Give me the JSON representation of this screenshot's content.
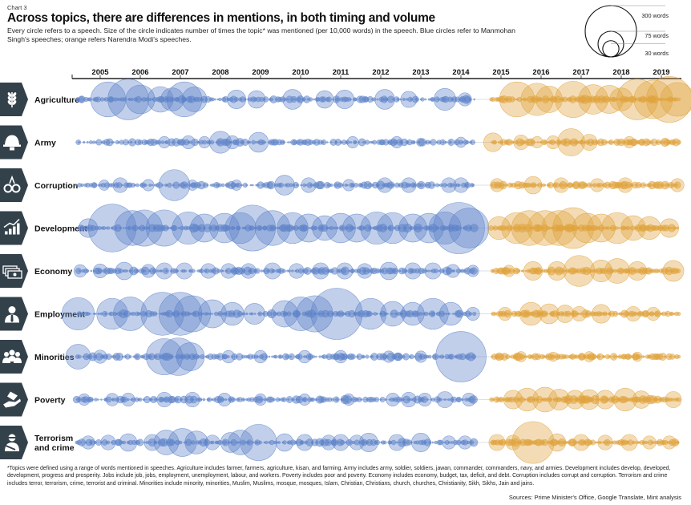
{
  "header": {
    "kicker": "Chart 3",
    "title": "Across topics, there are differences in mentions, in both timing and volume",
    "subtitle": "Every circle refers to a speech. Size of the circle indicates number of times the topic* was mentioned (per 10,000 words) in the speech. Blue circles refer to Manmohan Singh's speeches; orange refers Narendra Modi's speeches."
  },
  "legend": {
    "items": [
      {
        "label": "300 words",
        "value": 300
      },
      {
        "label": "75 words",
        "value": 75
      },
      {
        "label": "30 words",
        "value": 30
      }
    ]
  },
  "colors": {
    "manmohan": "#5b82c9",
    "modi": "#e0a33d",
    "icon_bg": "#33414b",
    "axis": "#222222"
  },
  "chart_data": {
    "type": "scatter",
    "encoding": "bubble timeline: x = speech date (year), y = topic row, bubble area = mentions per 10,000 words",
    "x_domain": [
      2004.3,
      2019.5
    ],
    "x_ticks": [
      2005,
      2006,
      2007,
      2008,
      2009,
      2010,
      2011,
      2012,
      2013,
      2014,
      2015,
      2016,
      2017,
      2018,
      2019
    ],
    "series": [
      {
        "name": "Manmohan Singh",
        "color": "#5b82c9",
        "years": [
          2004.4,
          2014.35
        ]
      },
      {
        "name": "Narendra Modi",
        "color": "#e0a33d",
        "years": [
          2014.75,
          2019.45
        ]
      }
    ],
    "topics": [
      {
        "name": "Agriculture",
        "icon": "wheat-icon",
        "big": [
          [
            2005.2,
            140
          ],
          [
            2005.7,
            190
          ],
          [
            2006.0,
            95
          ],
          [
            2006.5,
            75
          ],
          [
            2006.8,
            60
          ],
          [
            2007.1,
            140
          ],
          [
            2007.35,
            70
          ],
          [
            2008.4,
            40
          ],
          [
            2008.9,
            35
          ],
          [
            2009.8,
            45
          ],
          [
            2010.6,
            35
          ],
          [
            2011.1,
            40
          ],
          [
            2012.1,
            45
          ],
          [
            2012.7,
            30
          ],
          [
            2013.6,
            55
          ],
          [
            2014.1,
            20
          ],
          [
            2015.4,
            140
          ],
          [
            2015.9,
            120
          ],
          [
            2016.2,
            80
          ],
          [
            2016.8,
            150
          ],
          [
            2017.3,
            100
          ],
          [
            2017.7,
            90
          ],
          [
            2018.0,
            60
          ],
          [
            2018.4,
            190
          ],
          [
            2018.8,
            170
          ],
          [
            2019.2,
            240
          ],
          [
            2019.4,
            130
          ]
        ]
      },
      {
        "name": "Army",
        "icon": "helmet-icon",
        "big": [
          [
            2006.6,
            15
          ],
          [
            2007.2,
            20
          ],
          [
            2007.6,
            15
          ],
          [
            2008.0,
            55
          ],
          [
            2008.3,
            20
          ],
          [
            2008.95,
            45
          ],
          [
            2011.3,
            15
          ],
          [
            2012.4,
            15
          ],
          [
            2014.0,
            12
          ],
          [
            2014.8,
            40
          ],
          [
            2015.5,
            25
          ],
          [
            2015.9,
            15
          ],
          [
            2016.3,
            20
          ],
          [
            2016.75,
            85
          ],
          [
            2017.2,
            30
          ],
          [
            2018.2,
            15
          ]
        ]
      },
      {
        "name": "Corruption",
        "icon": "handcuffs-icon",
        "big": [
          [
            2005.1,
            12
          ],
          [
            2005.5,
            25
          ],
          [
            2006.2,
            15
          ],
          [
            2006.85,
            110
          ],
          [
            2007.3,
            12
          ],
          [
            2008.4,
            12
          ],
          [
            2009.6,
            45
          ],
          [
            2010.2,
            25
          ],
          [
            2011.2,
            15
          ],
          [
            2012.1,
            25
          ],
          [
            2012.7,
            25
          ],
          [
            2013.7,
            25
          ],
          [
            2014.0,
            25
          ],
          [
            2014.9,
            20
          ],
          [
            2015.8,
            35
          ],
          [
            2016.5,
            25
          ],
          [
            2017.4,
            20
          ],
          [
            2018.1,
            25
          ],
          [
            2019.4,
            20
          ]
        ]
      },
      {
        "name": "Development",
        "icon": "chart-growth-icon",
        "big": [
          [
            2004.7,
            40
          ],
          [
            2005.3,
            260
          ],
          [
            2005.8,
            140
          ],
          [
            2006.1,
            150
          ],
          [
            2006.6,
            150
          ],
          [
            2007.2,
            120
          ],
          [
            2007.6,
            90
          ],
          [
            2008.1,
            100
          ],
          [
            2008.5,
            110
          ],
          [
            2008.8,
            240
          ],
          [
            2009.3,
            140
          ],
          [
            2009.8,
            110
          ],
          [
            2010.2,
            90
          ],
          [
            2010.6,
            70
          ],
          [
            2011.0,
            100
          ],
          [
            2011.4,
            90
          ],
          [
            2011.9,
            120
          ],
          [
            2012.3,
            110
          ],
          [
            2012.8,
            90
          ],
          [
            2013.2,
            100
          ],
          [
            2013.6,
            120
          ],
          [
            2013.95,
            300
          ],
          [
            2014.2,
            180
          ],
          [
            2014.95,
            60
          ],
          [
            2015.4,
            110
          ],
          [
            2015.7,
            140
          ],
          [
            2016.1,
            140
          ],
          [
            2016.45,
            140
          ],
          [
            2016.8,
            190
          ],
          [
            2017.15,
            100
          ],
          [
            2017.5,
            90
          ],
          [
            2017.9,
            110
          ],
          [
            2018.3,
            70
          ],
          [
            2018.7,
            60
          ],
          [
            2019.2,
            40
          ]
        ]
      },
      {
        "name": "Economy",
        "icon": "money-icon",
        "big": [
          [
            2004.5,
            18
          ],
          [
            2005.0,
            22
          ],
          [
            2005.6,
            35
          ],
          [
            2006.2,
            20
          ],
          [
            2006.6,
            30
          ],
          [
            2007.1,
            30
          ],
          [
            2007.7,
            25
          ],
          [
            2008.2,
            25
          ],
          [
            2008.7,
            25
          ],
          [
            2009.3,
            30
          ],
          [
            2009.9,
            25
          ],
          [
            2010.5,
            30
          ],
          [
            2011.1,
            30
          ],
          [
            2011.6,
            25
          ],
          [
            2012.2,
            35
          ],
          [
            2012.8,
            30
          ],
          [
            2013.3,
            30
          ],
          [
            2013.8,
            20
          ],
          [
            2014.3,
            15
          ],
          [
            2015.2,
            15
          ],
          [
            2015.8,
            40
          ],
          [
            2016.4,
            40
          ],
          [
            2016.95,
            110
          ],
          [
            2017.5,
            55
          ],
          [
            2017.9,
            70
          ],
          [
            2018.4,
            40
          ],
          [
            2019.3,
            50
          ]
        ]
      },
      {
        "name": "Employment",
        "icon": "person-tie-icon",
        "big": [
          [
            2004.45,
            120
          ],
          [
            2005.3,
            110
          ],
          [
            2005.75,
            130
          ],
          [
            2006.55,
            210
          ],
          [
            2007.0,
            210
          ],
          [
            2007.3,
            150
          ],
          [
            2007.8,
            90
          ],
          [
            2008.3,
            60
          ],
          [
            2008.85,
            50
          ],
          [
            2009.6,
            80
          ],
          [
            2010.0,
            130
          ],
          [
            2010.35,
            150
          ],
          [
            2010.9,
            300
          ],
          [
            2011.75,
            110
          ],
          [
            2012.3,
            70
          ],
          [
            2012.8,
            60
          ],
          [
            2013.3,
            110
          ],
          [
            2013.75,
            60
          ],
          [
            2014.3,
            20
          ],
          [
            2015.1,
            20
          ],
          [
            2015.75,
            60
          ],
          [
            2016.2,
            45
          ],
          [
            2016.6,
            35
          ],
          [
            2016.95,
            25
          ],
          [
            2017.5,
            40
          ],
          [
            2018.3,
            25
          ],
          [
            2018.8,
            20
          ]
        ]
      },
      {
        "name": "Minorities",
        "icon": "group-icon",
        "big": [
          [
            2004.45,
            70
          ],
          [
            2005.0,
            20
          ],
          [
            2006.6,
            150
          ],
          [
            2006.95,
            160
          ],
          [
            2007.25,
            90
          ],
          [
            2008.2,
            18
          ],
          [
            2009.0,
            18
          ],
          [
            2010.1,
            18
          ],
          [
            2011.0,
            18
          ],
          [
            2012.2,
            15
          ],
          [
            2013.0,
            15
          ],
          [
            2014.0,
            290
          ],
          [
            2015.5,
            12
          ],
          [
            2016.3,
            10
          ],
          [
            2017.2,
            12
          ],
          [
            2018.4,
            10
          ]
        ]
      },
      {
        "name": "Poverty",
        "icon": "hand-giving-icon",
        "big": [
          [
            2004.6,
            15
          ],
          [
            2005.3,
            18
          ],
          [
            2005.7,
            20
          ],
          [
            2006.6,
            25
          ],
          [
            2007.3,
            25
          ],
          [
            2008.1,
            20
          ],
          [
            2009.0,
            15
          ],
          [
            2010.1,
            15
          ],
          [
            2011.2,
            15
          ],
          [
            2012.3,
            20
          ],
          [
            2012.7,
            25
          ],
          [
            2013.1,
            20
          ],
          [
            2013.6,
            30
          ],
          [
            2014.2,
            20
          ],
          [
            2015.3,
            40
          ],
          [
            2015.65,
            60
          ],
          [
            2016.1,
            70
          ],
          [
            2016.45,
            50
          ],
          [
            2016.85,
            40
          ],
          [
            2017.2,
            45
          ],
          [
            2017.6,
            40
          ],
          [
            2018.1,
            60
          ],
          [
            2018.5,
            35
          ],
          [
            2019.3,
            30
          ]
        ]
      },
      {
        "name": "Terrorism and crime",
        "icon": "masked-figure-icon",
        "big": [
          [
            2004.7,
            20
          ],
          [
            2005.2,
            25
          ],
          [
            2005.7,
            35
          ],
          [
            2006.3,
            30
          ],
          [
            2006.65,
            70
          ],
          [
            2007.05,
            90
          ],
          [
            2007.4,
            60
          ],
          [
            2007.8,
            25
          ],
          [
            2008.25,
            45
          ],
          [
            2008.5,
            70
          ],
          [
            2008.95,
            150
          ],
          [
            2009.6,
            35
          ],
          [
            2010.1,
            30
          ],
          [
            2010.7,
            25
          ],
          [
            2011.0,
            30
          ],
          [
            2011.4,
            25
          ],
          [
            2011.7,
            40
          ],
          [
            2012.4,
            30
          ],
          [
            2013.0,
            40
          ],
          [
            2013.7,
            20
          ],
          [
            2014.1,
            20
          ],
          [
            2014.9,
            30
          ],
          [
            2015.3,
            25
          ],
          [
            2015.8,
            200
          ],
          [
            2016.4,
            35
          ],
          [
            2017.0,
            30
          ],
          [
            2017.6,
            25
          ],
          [
            2018.2,
            30
          ],
          [
            2018.7,
            20
          ],
          [
            2019.2,
            20
          ]
        ]
      }
    ]
  },
  "footnote": "*Topics were defined using a range of words mentioned in speeches. Agriculture includes farmer, farmers, agriculture, kisan, and farming. Army includes army, soldier, soldiers, jawan, commander, commanders, navy, and armies. Development includes develop, developed, development, progress and prosperity. Jobs include job, jobs, employment, unemployment, labour, and workers. Poverty includes poor and poverty. Economy includes economy, budget, tax, deficit, and debt. Corruption includes corrupt and corruption. Terrorism and crime includes terror, terrorism, crime, terrorist and criminal. Minorities include minority, minorities, Muslim, Muslims, mosque, mosques, Islam, Christian, Christians, church, churches, Christianity, Sikh, Sikhs, Jain and jains.",
  "sources": "Sources: Prime Minister's Office, Google Translate, Mint analysis"
}
